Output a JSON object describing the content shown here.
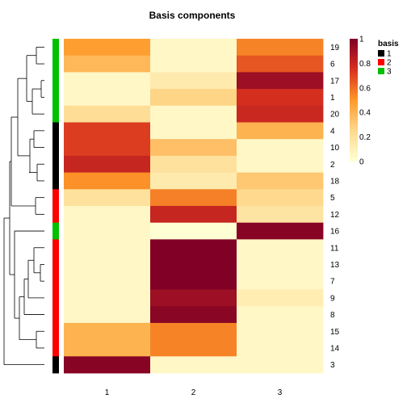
{
  "chart_data": {
    "type": "heatmap",
    "title": "Basis components",
    "columns": [
      "1",
      "2",
      "3"
    ],
    "rows": [
      "19",
      "6",
      "17",
      "1",
      "20",
      "4",
      "10",
      "2",
      "18",
      "5",
      "12",
      "16",
      "11",
      "13",
      "7",
      "9",
      "8",
      "15",
      "14",
      "3"
    ],
    "values": [
      [
        0.48,
        0.05,
        0.55
      ],
      [
        0.38,
        0.05,
        0.66
      ],
      [
        0.05,
        0.14,
        0.92
      ],
      [
        0.05,
        0.27,
        0.76
      ],
      [
        0.22,
        0.05,
        0.79
      ],
      [
        0.72,
        0.05,
        0.4
      ],
      [
        0.72,
        0.35,
        0.05
      ],
      [
        0.8,
        0.2,
        0.05
      ],
      [
        0.52,
        0.14,
        0.32
      ],
      [
        0.2,
        0.56,
        0.25
      ],
      [
        0.05,
        0.8,
        0.18
      ],
      [
        0.05,
        0.0,
        0.98
      ],
      [
        0.05,
        1.0,
        0.05
      ],
      [
        0.05,
        1.0,
        0.05
      ],
      [
        0.05,
        1.0,
        0.05
      ],
      [
        0.05,
        0.92,
        0.12
      ],
      [
        0.05,
        0.97,
        0.05
      ],
      [
        0.4,
        0.55,
        0.05
      ],
      [
        0.4,
        0.55,
        0.05
      ],
      [
        0.98,
        0.05,
        0.05
      ]
    ],
    "row_basis": [
      "3",
      "3",
      "3",
      "3",
      "3",
      "1",
      "1",
      "1",
      "1",
      "2",
      "2",
      "3",
      "2",
      "2",
      "2",
      "2",
      "2",
      "2",
      "2",
      "1"
    ],
    "color_scale": {
      "min": 0,
      "max": 1,
      "ticks": [
        "0",
        "0.2",
        "0.4",
        "0.6",
        "0.8",
        "1"
      ],
      "colors": [
        "#ffffd4",
        "#fed98e",
        "#fe9929",
        "#d7301f",
        "#800026"
      ]
    },
    "legend": {
      "title": "basis",
      "items": [
        {
          "label": "1",
          "color": "#000000"
        },
        {
          "label": "2",
          "color": "#ff0000"
        },
        {
          "label": "3",
          "color": "#00c000"
        }
      ]
    },
    "dendrogram": "left"
  }
}
